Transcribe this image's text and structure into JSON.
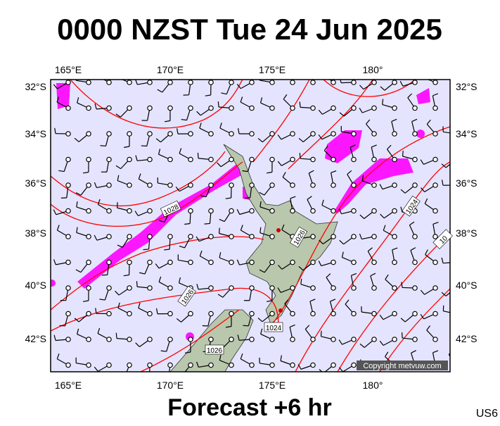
{
  "header": {
    "title": "0000 NZST Tue 24 Jun 2025"
  },
  "map": {
    "longitude_labels": [
      "165°E",
      "170°E",
      "175°E",
      "180°"
    ],
    "latitude_labels": [
      "32°S",
      "34°S",
      "36°S",
      "38°S",
      "40°S",
      "42°S"
    ],
    "isobar_labels": [
      "1028",
      "1026",
      "1026",
      "1024",
      "1024",
      "1026",
      "10"
    ],
    "copyright": "Copyright metvuw.com"
  },
  "footer": {
    "forecast": "Forecast +6 hr",
    "code": "US6"
  }
}
